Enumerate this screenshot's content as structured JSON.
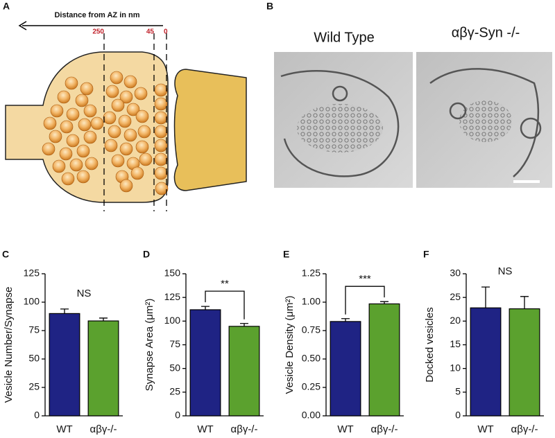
{
  "panel_a": {
    "panel_label": "A",
    "axis_label": "Distance from AZ in nm",
    "markers": [
      "250",
      "45",
      "0"
    ]
  },
  "panel_b": {
    "panel_label": "B",
    "image_titles": [
      "Wild Type",
      "αβγ-Syn -/-"
    ]
  },
  "chart_data": [
    {
      "type": "bar",
      "panel_label": "C",
      "y_label": "Vesicle Number/Synapse",
      "categories": [
        "WT",
        "αβγ-/-"
      ],
      "values": [
        90,
        83.5
      ],
      "errors": [
        4,
        2.5
      ],
      "colors": [
        "#1f2384",
        "#5ba12e"
      ],
      "ylim": [
        0,
        125
      ],
      "yticks": [
        0,
        25,
        50,
        75,
        100,
        125
      ],
      "annotation": "NS",
      "bracket": false
    },
    {
      "type": "bar",
      "panel_label": "D",
      "y_label": "Synapse Area (μm²)",
      "categories": [
        "WT",
        "αβγ-/-"
      ],
      "values": [
        112,
        94.5
      ],
      "errors": [
        3.5,
        3
      ],
      "colors": [
        "#1f2384",
        "#5ba12e"
      ],
      "ylim": [
        0,
        150
      ],
      "yticks": [
        0,
        25,
        50,
        75,
        100,
        125,
        150
      ],
      "annotation": "**",
      "bracket": true
    },
    {
      "type": "bar",
      "panel_label": "E",
      "y_label": "Vesicle Density (μm²)",
      "categories": [
        "WT",
        "αβγ-/-"
      ],
      "values": [
        0.83,
        0.985
      ],
      "errors": [
        0.025,
        0.02
      ],
      "colors": [
        "#1f2384",
        "#5ba12e"
      ],
      "ylim": [
        0,
        1.25
      ],
      "yticks": [
        {
          "value": 0,
          "label": "0.00"
        },
        0.25,
        {
          "value": 0.5,
          "label": "0.50"
        },
        0.75,
        {
          "value": 1,
          "label": "1.00"
        },
        1.25
      ],
      "annotation": "***",
      "bracket": true
    },
    {
      "type": "bar",
      "panel_label": "F",
      "y_label": "Docked vesicles",
      "categories": [
        "WT",
        "αβγ-/-"
      ],
      "values": [
        22.8,
        22.6
      ],
      "errors": [
        4.4,
        2.6
      ],
      "colors": [
        "#1f2384",
        "#5ba12e"
      ],
      "ylim": [
        0,
        30
      ],
      "yticks": [
        0,
        5,
        10,
        15,
        20,
        25,
        30
      ],
      "annotation": "NS",
      "bracket": false
    }
  ]
}
